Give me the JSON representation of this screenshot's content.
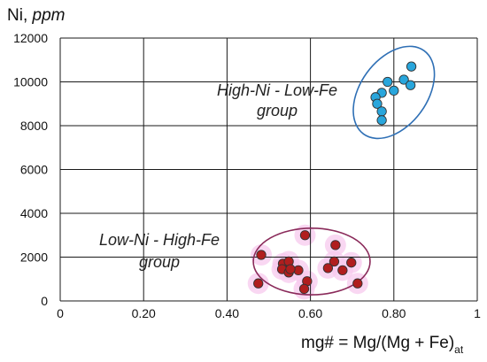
{
  "chart_data": {
    "type": "scatter",
    "title": "",
    "ylabel_main": "Ni, ",
    "ylabel_unit": "ppm",
    "xlabel_main": "mg# = Mg/(Mg + Fe)",
    "xlabel_sub": "at",
    "xlim": [
      0,
      1
    ],
    "ylim": [
      0,
      12000
    ],
    "xticks": [
      0,
      0.2,
      0.4,
      0.6,
      0.8,
      1
    ],
    "xtick_labels": [
      "0",
      "0.20",
      "0.40",
      "0.60",
      "0.80",
      "1"
    ],
    "yticks": [
      0,
      2000,
      4000,
      6000,
      8000,
      10000,
      12000
    ],
    "ytick_labels": [
      "0",
      "2000",
      "4000",
      "6000",
      "8000",
      "10000",
      "12000"
    ],
    "grid": true,
    "series": [
      {
        "color": "#29a6dc",
        "points": [
          {
            "x": 0.842,
            "y": 10700
          },
          {
            "x": 0.824,
            "y": 10100
          },
          {
            "x": 0.84,
            "y": 9850
          },
          {
            "x": 0.785,
            "y": 10000
          },
          {
            "x": 0.8,
            "y": 9600
          },
          {
            "x": 0.771,
            "y": 9500
          },
          {
            "x": 0.756,
            "y": 9300
          },
          {
            "x": 0.76,
            "y": 9000
          },
          {
            "x": 0.771,
            "y": 8650
          },
          {
            "x": 0.771,
            "y": 8250
          }
        ]
      },
      {
        "color": "#b01e1e",
        "points": [
          {
            "x": 0.587,
            "y": 3000
          },
          {
            "x": 0.482,
            "y": 2100
          },
          {
            "x": 0.66,
            "y": 2550
          },
          {
            "x": 0.534,
            "y": 1700
          },
          {
            "x": 0.548,
            "y": 1800
          },
          {
            "x": 0.657,
            "y": 1800
          },
          {
            "x": 0.698,
            "y": 1750
          },
          {
            "x": 0.532,
            "y": 1450
          },
          {
            "x": 0.548,
            "y": 1300
          },
          {
            "x": 0.571,
            "y": 1400
          },
          {
            "x": 0.642,
            "y": 1500
          },
          {
            "x": 0.677,
            "y": 1400
          },
          {
            "x": 0.475,
            "y": 800
          },
          {
            "x": 0.592,
            "y": 900
          },
          {
            "x": 0.713,
            "y": 800
          },
          {
            "x": 0.585,
            "y": 550
          },
          {
            "x": 0.552,
            "y": 1450
          }
        ]
      }
    ],
    "group_ellipses": [
      {
        "label_line1": "High-Ni - Low-Fe",
        "label_line2": "group",
        "color": "#2e6fb5",
        "cx": 0.8,
        "cy": 9520,
        "rx": 0.08,
        "ry": 2350,
        "rotate_deg": 36
      },
      {
        "label_line1": "Low-Ni - High-Fe",
        "label_line2": "group",
        "color": "#8a2a5a",
        "cx": 0.603,
        "cy": 1800,
        "rx": 0.14,
        "ry": 1520,
        "rotate_deg": 0
      }
    ]
  }
}
